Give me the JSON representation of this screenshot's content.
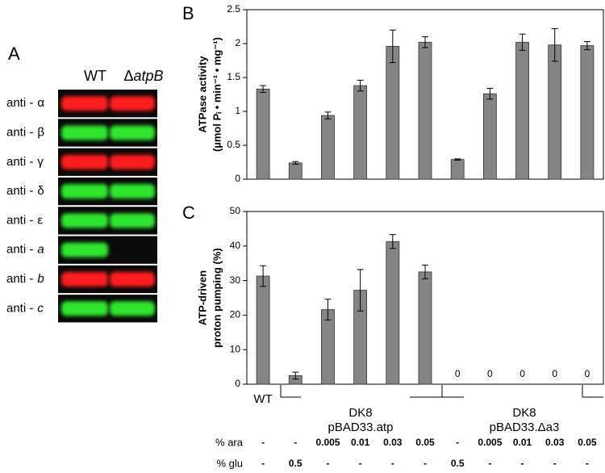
{
  "panel_a": {
    "letter": "A",
    "columns": [
      "WT",
      {
        "prefix": "Δ",
        "italic": "atpB"
      }
    ],
    "rows": [
      {
        "antibody": "anti -",
        "antigen": "α",
        "italic": false,
        "color": "#ff1a1a",
        "bands": [
          true,
          true
        ]
      },
      {
        "antibody": "anti -",
        "antigen": "β",
        "italic": false,
        "color": "#2ee62e",
        "bands": [
          true,
          true
        ]
      },
      {
        "antibody": "anti -",
        "antigen": "γ",
        "italic": false,
        "color": "#ff1a1a",
        "bands": [
          true,
          true
        ]
      },
      {
        "antibody": "anti -",
        "antigen": "δ",
        "italic": false,
        "color": "#2ee62e",
        "bands": [
          true,
          true
        ]
      },
      {
        "antibody": "anti -",
        "antigen": "ε",
        "italic": false,
        "color": "#2ee62e",
        "bands": [
          true,
          true
        ]
      },
      {
        "antibody": "anti -",
        "antigen": "a",
        "italic": true,
        "color": "#2ee62e",
        "bands": [
          true,
          false
        ]
      },
      {
        "antibody": "anti -",
        "antigen": "b",
        "italic": true,
        "color": "#ff1a1a",
        "bands": [
          true,
          true
        ]
      },
      {
        "antibody": "anti -",
        "antigen": "c",
        "italic": true,
        "color": "#2ee62e",
        "bands": [
          true,
          true
        ]
      }
    ]
  },
  "chart_data": [
    {
      "type": "bar",
      "letter": "B",
      "ylabel": [
        "ATPase activity",
        "(µmol Pᵢ • min⁻¹ • mg⁻¹)"
      ],
      "categories": [
        null,
        null,
        null,
        null,
        null,
        null,
        null,
        null,
        null,
        null,
        null
      ],
      "values": [
        1.33,
        0.24,
        0.94,
        1.38,
        1.96,
        2.02,
        0.29,
        1.26,
        2.02,
        1.98,
        1.97
      ],
      "errors": [
        0.05,
        0.02,
        0.05,
        0.08,
        0.24,
        0.08,
        0.01,
        0.08,
        0.12,
        0.24,
        0.06
      ],
      "color": "#858585",
      "ylim": [
        0,
        2.5
      ],
      "yticks": [
        0,
        0.5,
        1,
        1.5,
        2,
        2.5
      ]
    },
    {
      "type": "bar",
      "letter": "C",
      "ylabel": [
        "ATP-driven",
        "proton pumping (%)"
      ],
      "categories": [
        "WT",
        null,
        null,
        null,
        null,
        null,
        null,
        null,
        null,
        null,
        null
      ],
      "values": [
        31.3,
        2.5,
        21.6,
        27.2,
        41.3,
        32.5,
        0,
        0,
        0,
        0,
        0
      ],
      "errors": [
        3,
        1,
        3,
        6,
        2,
        2,
        null,
        null,
        null,
        null,
        null
      ],
      "color": "#858585",
      "ylim": [
        0,
        50
      ],
      "yticks": [
        0,
        10,
        20,
        30,
        40,
        50
      ]
    }
  ],
  "groups": [
    [
      "DK8",
      "pBAD33.atp"
    ],
    [
      "DK8",
      "pBAD33.Δa3"
    ]
  ],
  "conditions": [
    {
      "label": "% ara",
      "values": [
        "-",
        "-",
        "0.005",
        "0.01",
        "0.03",
        "0.05",
        "-",
        "0.005",
        "0.01",
        "0.03",
        "0.05"
      ]
    },
    {
      "label": "% glu",
      "values": [
        "-",
        "0.5",
        "-",
        "-",
        "-",
        "-",
        "0.5",
        "-",
        "-",
        "-",
        "-"
      ]
    }
  ]
}
